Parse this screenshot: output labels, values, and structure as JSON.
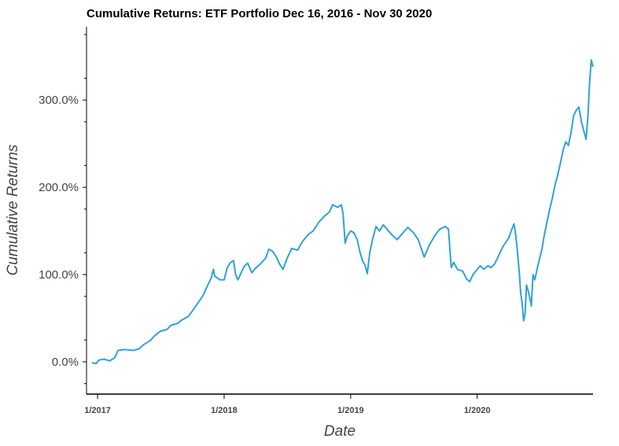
{
  "colors": {
    "series": "#2fa2d8",
    "axis": "#000000",
    "background": "#ffffff"
  },
  "chart_data": {
    "type": "line",
    "title": "Cumulative Returns: ETF Portfolio Dec 16, 2016 - Nov 30 2020",
    "xlabel": "Date",
    "ylabel": "Cumulative Returns",
    "x_tick_labels": [
      "1/2017",
      "1/2018",
      "1/2019",
      "1/2020"
    ],
    "x_tick_values": [
      "2017-01-01",
      "2018-01-01",
      "2019-01-01",
      "2020-01-01"
    ],
    "y_tick_labels": [
      "0.0%",
      "100.0%",
      "200.0%",
      "300.0%"
    ],
    "y_tick_values": [
      0,
      100,
      200,
      300
    ],
    "xlim": [
      "2016-12-16",
      "2020-11-30"
    ],
    "ylim": [
      -37,
      384
    ],
    "grid": false,
    "legend": false,
    "series": [
      {
        "values_unit": "percent",
        "points": [
          [
            "2016-12-16",
            -1
          ],
          [
            "2016-12-28",
            -2
          ],
          [
            "2017-01-05",
            2
          ],
          [
            "2017-01-20",
            3
          ],
          [
            "2017-02-05",
            1
          ],
          [
            "2017-02-20",
            5
          ],
          [
            "2017-03-01",
            13
          ],
          [
            "2017-03-20",
            14
          ],
          [
            "2017-04-15",
            13
          ],
          [
            "2017-05-01",
            15
          ],
          [
            "2017-05-15",
            20
          ],
          [
            "2017-06-01",
            24
          ],
          [
            "2017-06-15",
            30
          ],
          [
            "2017-07-01",
            35
          ],
          [
            "2017-07-20",
            37
          ],
          [
            "2017-08-01",
            42
          ],
          [
            "2017-08-20",
            44
          ],
          [
            "2017-09-01",
            48
          ],
          [
            "2017-09-20",
            52
          ],
          [
            "2017-10-01",
            58
          ],
          [
            "2017-10-15",
            66
          ],
          [
            "2017-11-01",
            76
          ],
          [
            "2017-11-15",
            88
          ],
          [
            "2017-11-25",
            96
          ],
          [
            "2017-12-01",
            106
          ],
          [
            "2017-12-05",
            98
          ],
          [
            "2017-12-20",
            94
          ],
          [
            "2018-01-01",
            94
          ],
          [
            "2018-01-10",
            108
          ],
          [
            "2018-01-20",
            114
          ],
          [
            "2018-01-28",
            116
          ],
          [
            "2018-02-03",
            100
          ],
          [
            "2018-02-10",
            94
          ],
          [
            "2018-02-20",
            103
          ],
          [
            "2018-03-01",
            110
          ],
          [
            "2018-03-10",
            113
          ],
          [
            "2018-03-22",
            102
          ],
          [
            "2018-04-01",
            107
          ],
          [
            "2018-04-15",
            112
          ],
          [
            "2018-05-01",
            119
          ],
          [
            "2018-05-10",
            129
          ],
          [
            "2018-05-20",
            127
          ],
          [
            "2018-06-01",
            120
          ],
          [
            "2018-06-10",
            112
          ],
          [
            "2018-06-20",
            106
          ],
          [
            "2018-07-01",
            118
          ],
          [
            "2018-07-15",
            130
          ],
          [
            "2018-08-01",
            128
          ],
          [
            "2018-08-15",
            138
          ],
          [
            "2018-09-01",
            146
          ],
          [
            "2018-09-15",
            150
          ],
          [
            "2018-10-01",
            160
          ],
          [
            "2018-10-15",
            166
          ],
          [
            "2018-11-01",
            172
          ],
          [
            "2018-11-10",
            180
          ],
          [
            "2018-11-25",
            177
          ],
          [
            "2018-12-05",
            180
          ],
          [
            "2018-12-10",
            170
          ],
          [
            "2018-12-16",
            136
          ],
          [
            "2018-12-22",
            144
          ],
          [
            "2019-01-01",
            150
          ],
          [
            "2019-01-10",
            148
          ],
          [
            "2019-01-20",
            140
          ],
          [
            "2019-01-28",
            125
          ],
          [
            "2019-02-05",
            115
          ],
          [
            "2019-02-12",
            110
          ],
          [
            "2019-02-18",
            101
          ],
          [
            "2019-02-25",
            125
          ],
          [
            "2019-03-05",
            140
          ],
          [
            "2019-03-15",
            155
          ],
          [
            "2019-03-25",
            150
          ],
          [
            "2019-04-05",
            157
          ],
          [
            "2019-04-20",
            150
          ],
          [
            "2019-05-01",
            145
          ],
          [
            "2019-05-15",
            140
          ],
          [
            "2019-06-01",
            148
          ],
          [
            "2019-06-15",
            154
          ],
          [
            "2019-07-01",
            148
          ],
          [
            "2019-07-15",
            140
          ],
          [
            "2019-08-01",
            120
          ],
          [
            "2019-08-15",
            133
          ],
          [
            "2019-09-01",
            145
          ],
          [
            "2019-09-15",
            152
          ],
          [
            "2019-10-01",
            155
          ],
          [
            "2019-10-10",
            152
          ],
          [
            "2019-10-18",
            108
          ],
          [
            "2019-10-25",
            114
          ],
          [
            "2019-11-05",
            106
          ],
          [
            "2019-11-20",
            104
          ],
          [
            "2019-12-01",
            95
          ],
          [
            "2019-12-10",
            92
          ],
          [
            "2019-12-20",
            100
          ],
          [
            "2020-01-01",
            106
          ],
          [
            "2020-01-10",
            110
          ],
          [
            "2020-01-20",
            106
          ],
          [
            "2020-02-01",
            110
          ],
          [
            "2020-02-10",
            108
          ],
          [
            "2020-02-20",
            112
          ],
          [
            "2020-03-01",
            120
          ],
          [
            "2020-03-15",
            132
          ],
          [
            "2020-04-01",
            142
          ],
          [
            "2020-04-10",
            152
          ],
          [
            "2020-04-16",
            158
          ],
          [
            "2020-04-20",
            148
          ],
          [
            "2020-04-25",
            130
          ],
          [
            "2020-05-01",
            104
          ],
          [
            "2020-05-05",
            80
          ],
          [
            "2020-05-10",
            65
          ],
          [
            "2020-05-14",
            47
          ],
          [
            "2020-05-18",
            55
          ],
          [
            "2020-05-22",
            88
          ],
          [
            "2020-05-28",
            80
          ],
          [
            "2020-06-05",
            64
          ],
          [
            "2020-06-10",
            100
          ],
          [
            "2020-06-15",
            94
          ],
          [
            "2020-06-25",
            112
          ],
          [
            "2020-07-05",
            128
          ],
          [
            "2020-07-12",
            144
          ],
          [
            "2020-07-20",
            160
          ],
          [
            "2020-07-28",
            175
          ],
          [
            "2020-08-05",
            188
          ],
          [
            "2020-08-12",
            202
          ],
          [
            "2020-08-20",
            214
          ],
          [
            "2020-08-28",
            228
          ],
          [
            "2020-09-05",
            243
          ],
          [
            "2020-09-12",
            252
          ],
          [
            "2020-09-20",
            248
          ],
          [
            "2020-09-28",
            264
          ],
          [
            "2020-10-05",
            282
          ],
          [
            "2020-10-12",
            288
          ],
          [
            "2020-10-20",
            292
          ],
          [
            "2020-10-28",
            274
          ],
          [
            "2020-11-05",
            262
          ],
          [
            "2020-11-10",
            255
          ],
          [
            "2020-11-15",
            280
          ],
          [
            "2020-11-20",
            320
          ],
          [
            "2020-11-25",
            346
          ],
          [
            "2020-11-30",
            338
          ]
        ]
      }
    ]
  }
}
